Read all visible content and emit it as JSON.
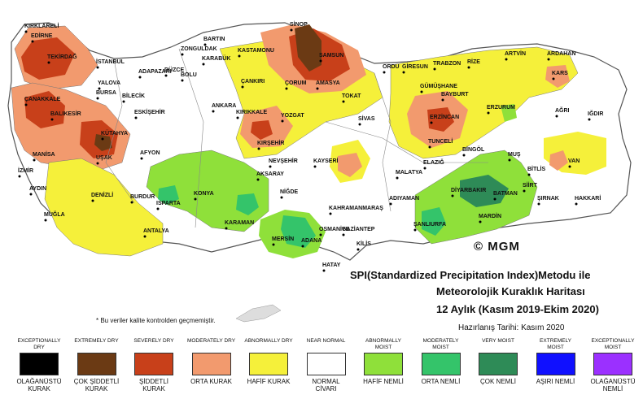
{
  "title": {
    "line1": "SPI(Standardized Precipitation Index)Metodu ile",
    "line2": "Meteorolojik Kuraklık Haritası",
    "line3": "12 Aylık (Kasım 2019-Ekim 2020)",
    "prepared": "Hazırlanış Tarihi: Kasım 2020"
  },
  "note": "* Bu veriler kalite kontrolden geçmemiştir.",
  "copyright": "© MGM",
  "colors": {
    "exceptionally_dry": "#000000",
    "extremely_dry": "#6b3a14",
    "severely_dry": "#c8401a",
    "moderately_dry": "#f29a6e",
    "abnormally_dry": "#f5f03a",
    "near_normal": "#ffffff",
    "abnormally_moist": "#8fe03a",
    "moderately_moist": "#34c46a",
    "very_moist": "#2e8b57",
    "extremely_moist": "#1010ff",
    "exceptionally_moist": "#9b30ff"
  },
  "legend": [
    {
      "en": "EXCEPTIONALLY DRY",
      "tr": "OLAĞANÜSTÜ KURAK",
      "color": "#000000"
    },
    {
      "en": "EXTREMELY DRY",
      "tr": "ÇOK ŞİDDETLİ KURAK",
      "color": "#6b3a14"
    },
    {
      "en": "SEVERELY DRY",
      "tr": "ŞİDDETLİ KURAK",
      "color": "#c8401a"
    },
    {
      "en": "MODERATELY DRY",
      "tr": "ORTA KURAK",
      "color": "#f29a6e"
    },
    {
      "en": "ABNORMALLY DRY",
      "tr": "HAFİF KURAK",
      "color": "#f5f03a"
    },
    {
      "en": "NEAR NORMAL",
      "tr": "NORMAL CİVARI",
      "color": "#ffffff"
    },
    {
      "en": "ABNORMALLY MOIST",
      "tr": "HAFİF NEMLİ",
      "color": "#8fe03a"
    },
    {
      "en": "MODERATELY MOIST",
      "tr": "ORTA NEMLİ",
      "color": "#34c46a"
    },
    {
      "en": "VERY MOIST",
      "tr": "ÇOK NEMLİ",
      "color": "#2e8b57"
    },
    {
      "en": "EXTREMELY MOIST",
      "tr": "AŞIRI NEMLİ",
      "color": "#1010ff"
    },
    {
      "en": "EXCEPTIONALLY MOIST",
      "tr": "OLAĞANÜSTÜ NEMLİ",
      "color": "#9b30ff"
    }
  ],
  "cities": [
    "KIRKLARELİ",
    "EDİRNE",
    "TEKİRDAĞ",
    "İSTANBUL",
    "ÇANAKKALE",
    "BALIKESİR",
    "MANİSA",
    "İZMİR",
    "AYDIN",
    "MUĞLA",
    "BURSA",
    "YALOVA",
    "BİLECİK",
    "ESKİŞEHİR",
    "KÜTAHYA",
    "UŞAK",
    "DENİZLİ",
    "AFYON",
    "ISPARTA",
    "BURDUR",
    "ANTALYA",
    "ADAPAZARI",
    "DÜZCE",
    "BOLU",
    "ZONGULDAK",
    "BARTIN",
    "KARABÜK",
    "KASTAMONU",
    "SİNOP",
    "SAMSUN",
    "ÇORUM",
    "AMASYA",
    "TOKAT",
    "ÇANKIRI",
    "ANKARA",
    "KIRIKKALE",
    "YOZGAT",
    "KIRŞEHİR",
    "SİVAS",
    "NEVŞEHİR",
    "KAYSERİ",
    "AKSARAY",
    "KONYA",
    "NİĞDE",
    "KARAMAN",
    "MERSİN",
    "ADANA",
    "OSMANİYE",
    "HATAY",
    "KAHRAMANMARAŞ",
    "GAZİANTEP",
    "KİLİS",
    "ADIYAMAN",
    "ŞANLIURFA",
    "MALATYA",
    "ELAZIĞ",
    "TUNCELİ",
    "ERZİNCAN",
    "BAYBURT",
    "GÜMÜŞHANE",
    "TRABZON",
    "RİZE",
    "ORDU",
    "GİRESUN",
    "ARTVİN",
    "ARDAHAN",
    "KARS",
    "AĞRI",
    "IĞDIR",
    "ERZURUM",
    "BİNGÖL",
    "MUŞ",
    "BİTLİS",
    "VAN",
    "SİİRT",
    "BATMAN",
    "DİYARBAKIR",
    "MARDİN",
    "ŞIRNAK",
    "HAKKARİ"
  ]
}
